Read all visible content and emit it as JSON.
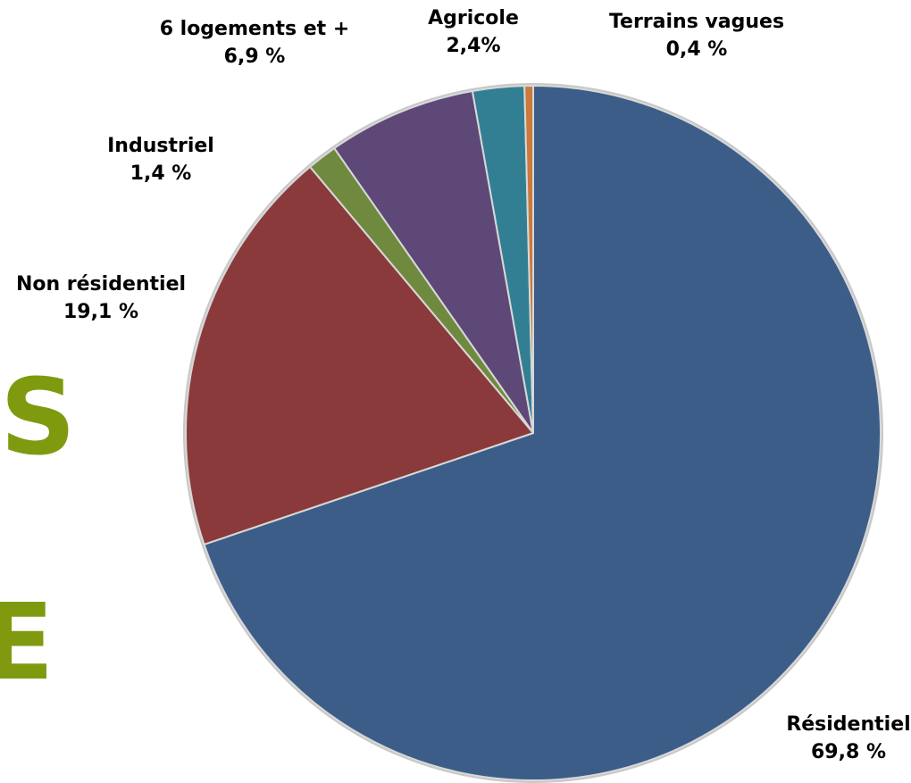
{
  "background_text": [
    "S",
    "E"
  ],
  "chart_data": {
    "type": "pie",
    "title": "",
    "start": "12 o'clock",
    "direction": "clockwise",
    "legend": "none",
    "slices": [
      {
        "label": "Résidentiel",
        "value": 69.8,
        "value_text": "69,8 %",
        "color": "#3c5d87"
      },
      {
        "label": "Non résidentiel",
        "value": 19.1,
        "value_text": "19,1 %",
        "color": "#8a3a3a"
      },
      {
        "label": "Industriel",
        "value": 1.4,
        "value_text": "1,4 %",
        "color": "#6f8a3f"
      },
      {
        "label": "6 logements et +",
        "value": 6.9,
        "value_text": "6,9 %",
        "color": "#5d4877"
      },
      {
        "label": "Agricole",
        "value": 2.4,
        "value_text": "2,4%",
        "color": "#327f94"
      },
      {
        "label": "Terrains vagues",
        "value": 0.4,
        "value_text": "0,4 %",
        "color": "#c97a3c"
      }
    ]
  }
}
